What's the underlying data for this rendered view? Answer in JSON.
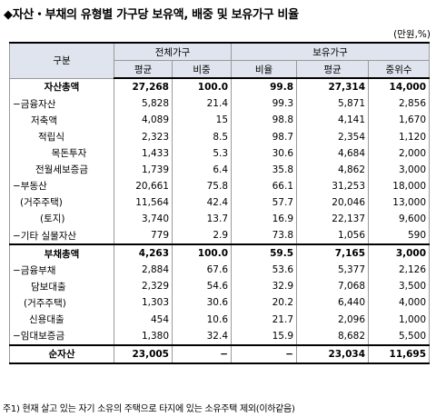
{
  "title": "◆자산・부채의 유형별 가구당 보유액, 배중 및 보유가구 비율",
  "unit": "(만원,%)",
  "header": {
    "category": "구분",
    "group_all": "전체가구",
    "group_holding": "보유가구",
    "avg": "평균",
    "share": "비중",
    "ratio": "비율",
    "avg2": "평균",
    "median": "중위수"
  },
  "rows": [
    {
      "label": "자산총액",
      "v": [
        "27,268",
        "100.0",
        "99.8",
        "27,314",
        "14,000"
      ]
    },
    {
      "label": "−금융자산",
      "v": [
        "5,828",
        "21.4",
        "99.3",
        "5,871",
        "2,856"
      ]
    },
    {
      "label": "저축액",
      "v": [
        "4,089",
        "15",
        "98.8",
        "4,141",
        "1,670"
      ]
    },
    {
      "label": "적립식",
      "v": [
        "2,323",
        "8.5",
        "98.7",
        "2,354",
        "1,120"
      ]
    },
    {
      "label": "목돈투자",
      "v": [
        "1,433",
        "5.3",
        "30.6",
        "4,684",
        "2,000"
      ]
    },
    {
      "label": "전월세보증금",
      "v": [
        "1,739",
        "6.4",
        "35.8",
        "4,862",
        "3,000"
      ]
    },
    {
      "label": "−부동산",
      "v": [
        "20,661",
        "75.8",
        "66.1",
        "31,253",
        "18,000"
      ]
    },
    {
      "label": "(거주주택)",
      "v": [
        "11,564",
        "42.4",
        "57.7",
        "20,046",
        "13,000"
      ]
    },
    {
      "label": "(토지)",
      "v": [
        "3,740",
        "13.7",
        "16.9",
        "22,137",
        "9,600"
      ]
    },
    {
      "label": "−기타 실물자산",
      "v": [
        "779",
        "2.9",
        "73.8",
        "1,056",
        "590"
      ]
    },
    {
      "label": "부채총액",
      "v": [
        "4,263",
        "100.0",
        "59.5",
        "7,165",
        "3,000"
      ]
    },
    {
      "label": "−금융부채",
      "v": [
        "2,884",
        "67.6",
        "53.6",
        "5,377",
        "2,126"
      ]
    },
    {
      "label": "담보대출",
      "v": [
        "2,329",
        "54.6",
        "32.9",
        "7,068",
        "3,500"
      ]
    },
    {
      "label": "(거주주택)",
      "v": [
        "1,303",
        "30.6",
        "20.2",
        "6,440",
        "4,000"
      ]
    },
    {
      "label": "신용대출",
      "v": [
        "454",
        "10.6",
        "21.7",
        "2,096",
        "1,000"
      ]
    },
    {
      "label": "−임대보증금",
      "v": [
        "1,380",
        "32.4",
        "15.9",
        "8,682",
        "5,500"
      ]
    },
    {
      "label": "순자산",
      "v": [
        "23,005",
        "−",
        "−",
        "23,034",
        "11,695"
      ]
    }
  ],
  "footnote": "주1) 현재 살고 있는 자기 소유의 주택으로 타지에 있는 소유주택 제외(이하같음)"
}
